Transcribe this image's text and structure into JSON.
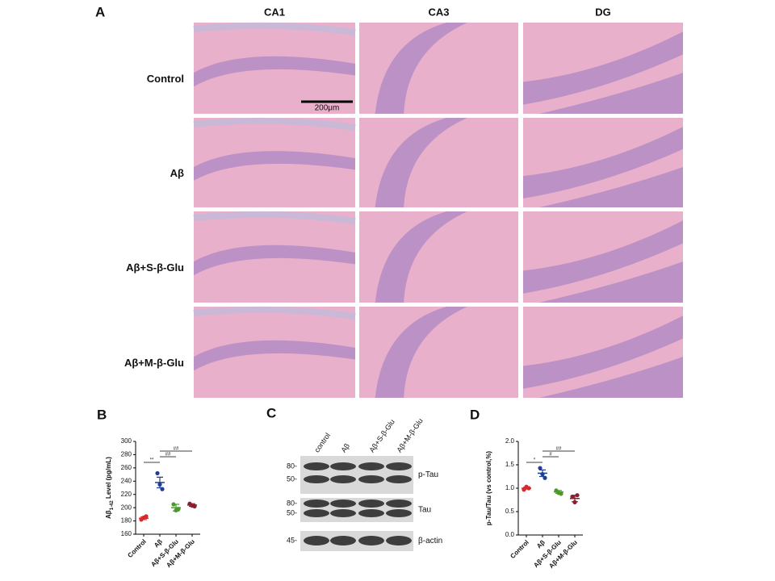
{
  "panel_a": {
    "label": "A",
    "columns": [
      "CA1",
      "CA3",
      "DG"
    ],
    "rows": [
      "Control",
      "Aβ",
      "Aβ+S-β-Glu",
      "Aβ+M-β-Glu"
    ],
    "scale_bar": "200μm"
  },
  "panel_c": {
    "label": "C",
    "lanes": [
      "control",
      "Aβ",
      "Aβ+S-β-Glu",
      "Aβ+M-β-Glu"
    ],
    "blots": [
      {
        "name": "p-Tau",
        "markers": [
          "80-",
          "50-"
        ]
      },
      {
        "name": "Tau",
        "markers": [
          "80-",
          "50-"
        ]
      },
      {
        "name": "β-actin",
        "markers": [
          "45-"
        ]
      }
    ]
  },
  "chart_data": [
    {
      "type": "dot_plot",
      "label": "B",
      "y_label_parts": [
        "Aβ",
        "1-42",
        " Level (pg/mL)"
      ],
      "ylim": [
        160,
        300
      ],
      "yticks": [
        160,
        180,
        200,
        220,
        240,
        260,
        280,
        300
      ],
      "categories": [
        "Control",
        "Aβ",
        "Aβ+S-β-Glu",
        "Aβ+M-β-Glu"
      ],
      "groups": [
        {
          "color": "#d62b2b",
          "points": [
            182,
            185,
            187
          ],
          "mean": 184,
          "sem": 2
        },
        {
          "color": "#1f3f8f",
          "points": [
            252,
            235,
            228
          ],
          "mean": 238,
          "sem": 8
        },
        {
          "color": "#4a9a2a",
          "points": [
            205,
            196,
            198
          ],
          "mean": 200,
          "sem": 5
        },
        {
          "color": "#8a1f2f",
          "points": [
            206,
            203,
            202
          ],
          "mean": 204,
          "sem": 2
        }
      ],
      "annotations": [
        {
          "text": "**",
          "between": [
            "Control",
            "Aβ"
          ]
        },
        {
          "text": "##",
          "between": [
            "Aβ",
            "Aβ+S-β-Glu"
          ]
        },
        {
          "text": "##",
          "between": [
            "Aβ",
            "Aβ+M-β-Glu"
          ]
        }
      ]
    },
    {
      "type": "dot_plot",
      "label": "D",
      "y_label_parts": [
        "p-Tau/Tau (vs control,%)"
      ],
      "ylim": [
        0,
        2.0
      ],
      "yticks": [
        {
          "value": 0,
          "label": "0.0"
        },
        0.5,
        {
          "value": 1,
          "label": "1.0"
        },
        1.5,
        {
          "value": 2,
          "label": "2.0"
        }
      ],
      "categories": [
        "Control",
        "Aβ",
        "Aβ+S-β-Glu",
        "Aβ+M-β-Glu"
      ],
      "groups": [
        {
          "color": "#d62b2b",
          "points": [
            0.97,
            1.03,
            1.0
          ],
          "mean": 1.0,
          "sem": 0.02
        },
        {
          "color": "#1f3f8f",
          "points": [
            1.43,
            1.3,
            1.22
          ],
          "mean": 1.32,
          "sem": 0.07
        },
        {
          "color": "#4a9a2a",
          "points": [
            0.95,
            0.9,
            0.88
          ],
          "mean": 0.92,
          "sem": 0.03
        },
        {
          "color": "#8a1f2f",
          "points": [
            0.82,
            0.7,
            0.85
          ],
          "mean": 0.78,
          "sem": 0.07
        }
      ],
      "annotations": [
        {
          "text": "*",
          "between": [
            "Control",
            "Aβ"
          ]
        },
        {
          "text": "#",
          "between": [
            "Aβ",
            "Aβ+S-β-Glu"
          ]
        },
        {
          "text": "##",
          "between": [
            "Aβ",
            "Aβ+M-β-Glu"
          ]
        }
      ]
    }
  ]
}
